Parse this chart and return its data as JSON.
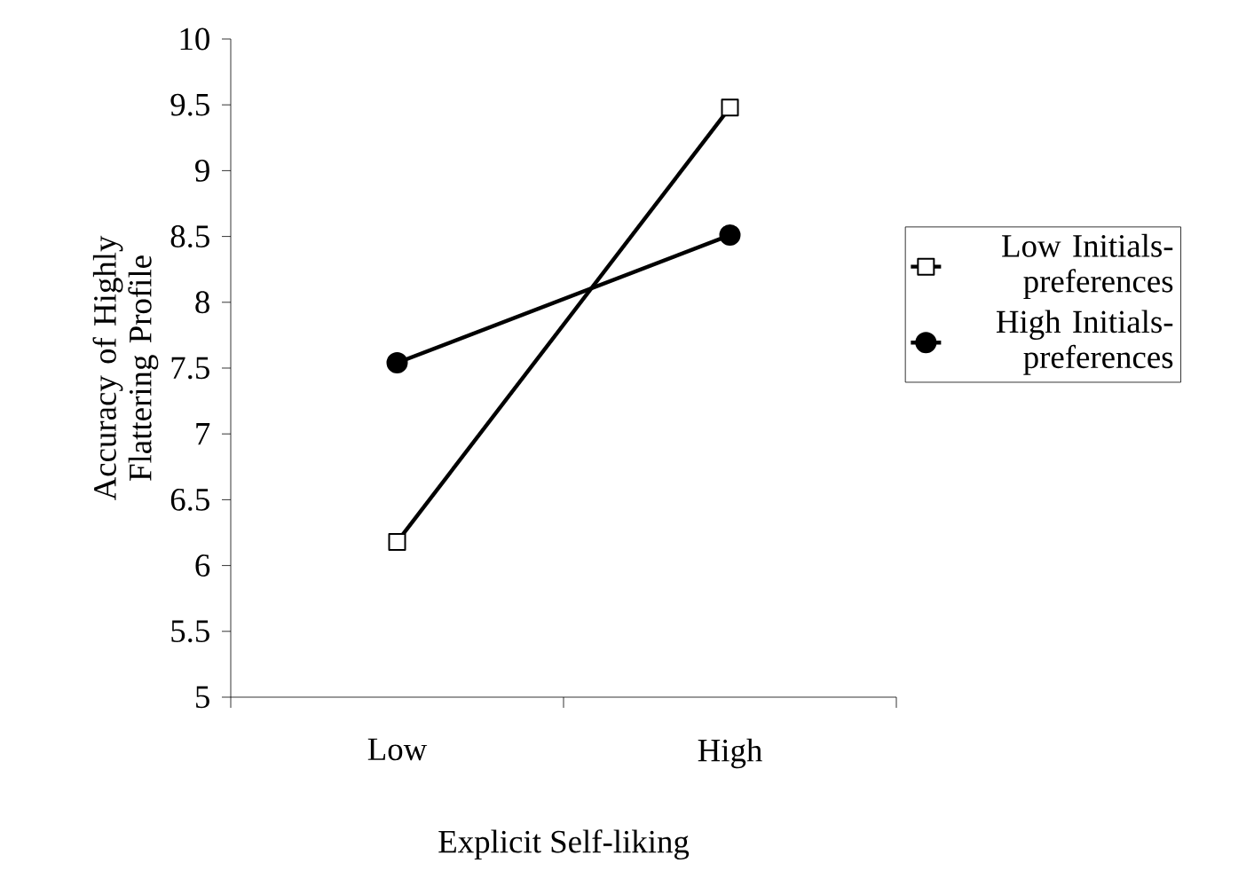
{
  "chart_data": {
    "type": "line",
    "xlabel": "Explicit Self-liking",
    "ylabel": "Accuracy of Highly Flattering Profile",
    "categories": [
      "Low",
      "High"
    ],
    "series": [
      {
        "name": "Low Initials-preferences",
        "color": "#000000",
        "marker": "square",
        "values": [
          6.18,
          9.48
        ]
      },
      {
        "name": "High Initials-preferences",
        "color": "#000000",
        "marker": "circle",
        "values": [
          7.54,
          8.51
        ]
      }
    ],
    "ylim": [
      5,
      10
    ],
    "yticks": [
      5,
      5.5,
      6,
      6.5,
      7,
      7.5,
      8,
      8.5,
      9,
      9.5,
      10
    ],
    "grid": false,
    "legend": "right",
    "line_style": "solid"
  }
}
